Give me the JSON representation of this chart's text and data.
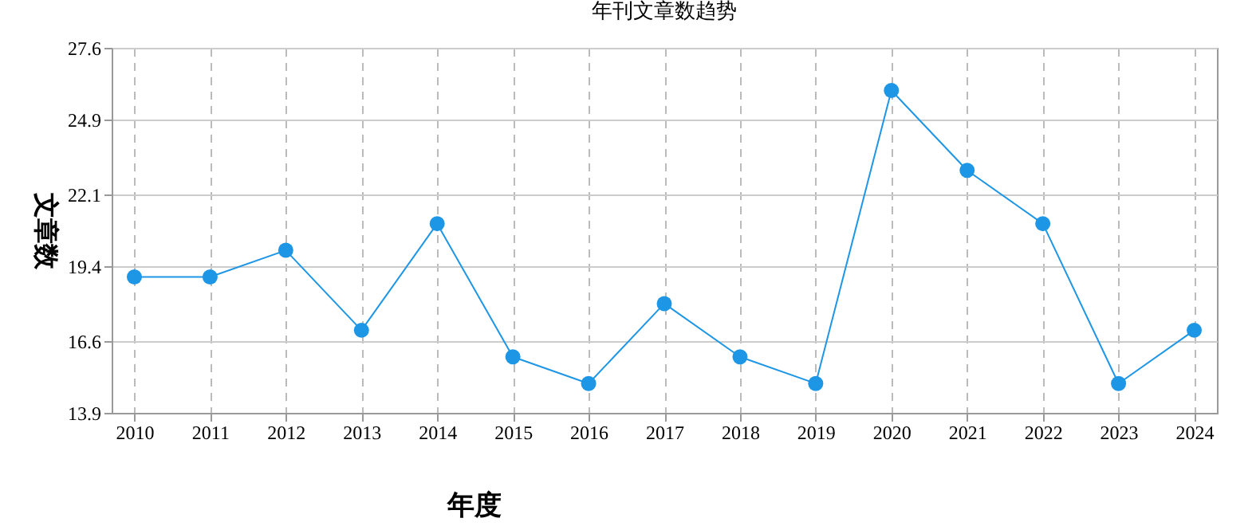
{
  "chart_data": {
    "type": "line",
    "title": "年刊文章数趋势",
    "xlabel": "年度",
    "ylabel": "文章数",
    "categories": [
      "2010",
      "2011",
      "2012",
      "2013",
      "2014",
      "2015",
      "2016",
      "2017",
      "2018",
      "2019",
      "2020",
      "2021",
      "2022",
      "2023",
      "2024"
    ],
    "series": [
      {
        "color": "#1e96e6",
        "values": [
          19,
          19,
          20,
          17,
          21,
          16,
          15,
          18,
          16,
          15,
          26,
          23,
          21,
          15,
          17
        ]
      }
    ],
    "ylim": [
      13.9,
      27.6
    ],
    "yticks": [
      13.9,
      16.6,
      19.4,
      22.1,
      24.9,
      27.6
    ],
    "grid": true,
    "marker": "circle",
    "line_style": "solid"
  }
}
